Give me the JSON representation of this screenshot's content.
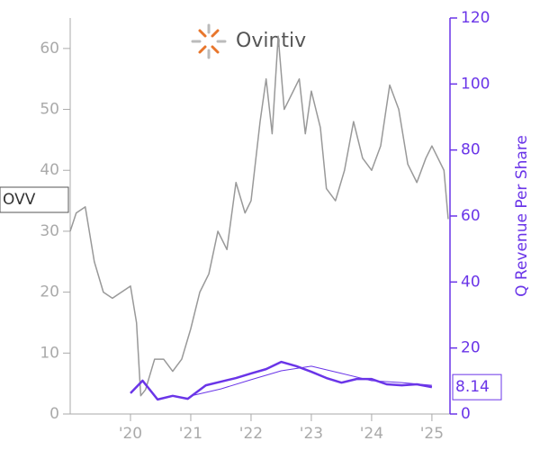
{
  "chart_data": {
    "type": "line",
    "ticker": "OVV",
    "logo_text": "Ovintiv",
    "y2label": "Q Revenue Per Share",
    "xlim": [
      2019.0,
      2025.3
    ],
    "xticks": [
      {
        "value": 2020,
        "label": "'20"
      },
      {
        "value": 2021,
        "label": "'21"
      },
      {
        "value": 2022,
        "label": "'22"
      },
      {
        "value": 2023,
        "label": "'23"
      },
      {
        "value": 2024,
        "label": "'24"
      },
      {
        "value": 2025,
        "label": "'25"
      }
    ],
    "ylim": [
      0,
      65
    ],
    "yticks": [
      0,
      10,
      20,
      30,
      40,
      50,
      60
    ],
    "y2lim": [
      0,
      120
    ],
    "y2ticks": [
      0,
      20,
      40,
      60,
      80,
      100,
      120
    ],
    "series": [
      {
        "color": "#999999",
        "width": 1.5,
        "x": [
          2019.0,
          2019.1,
          2019.25,
          2019.4,
          2019.55,
          2019.7,
          2019.85,
          2020.0,
          2020.1,
          2020.17,
          2020.25,
          2020.4,
          2020.55,
          2020.7,
          2020.85,
          2021.0,
          2021.15,
          2021.3,
          2021.45,
          2021.6,
          2021.75,
          2021.9,
          2022.0,
          2022.15,
          2022.25,
          2022.35,
          2022.45,
          2022.55,
          2022.7,
          2022.8,
          2022.9,
          2023.0,
          2023.15,
          2023.25,
          2023.4,
          2023.55,
          2023.7,
          2023.85,
          2024.0,
          2024.15,
          2024.3,
          2024.45,
          2024.6,
          2024.75,
          2024.9,
          2025.0,
          2025.1,
          2025.2,
          2025.27
        ],
        "values": [
          30,
          33,
          34,
          25,
          20,
          19,
          20,
          21,
          15,
          3,
          4,
          9,
          9,
          7,
          9,
          14,
          20,
          23,
          30,
          27,
          38,
          33,
          35,
          48,
          55,
          46,
          62,
          50,
          53,
          55,
          46,
          53,
          47,
          37,
          35,
          40,
          48,
          42,
          40,
          44,
          54,
          50,
          41,
          38,
          42,
          44,
          42,
          40,
          32
        ]
      },
      {
        "color": "#6a35e8",
        "width": 2.5,
        "axis": "y2",
        "x": [
          2020.0,
          2020.2,
          2020.45,
          2020.7,
          2020.95,
          2021.25,
          2021.5,
          2021.75,
          2022.0,
          2022.25,
          2022.5,
          2022.75,
          2023.0,
          2023.25,
          2023.5,
          2023.75,
          2024.0,
          2024.25,
          2024.5,
          2024.75,
          2025.0
        ],
        "values": [
          6.3,
          10.1,
          4.4,
          5.5,
          4.6,
          8.7,
          9.8,
          10.9,
          12.3,
          13.6,
          15.8,
          14.5,
          12.8,
          10.9,
          9.5,
          10.6,
          10.6,
          9,
          8.7,
          9,
          8.14
        ]
      },
      {
        "color": "#6a35e8",
        "width": 1,
        "axis": "y2",
        "x": [
          2021.0,
          2021.5,
          2022.0,
          2022.5,
          2023.0,
          2023.5,
          2024.0,
          2024.5,
          2025.0
        ],
        "values": [
          5.5,
          7.6,
          10.4,
          13.1,
          14.5,
          12.3,
          10.1,
          9.5,
          8.7
        ]
      }
    ]
  }
}
